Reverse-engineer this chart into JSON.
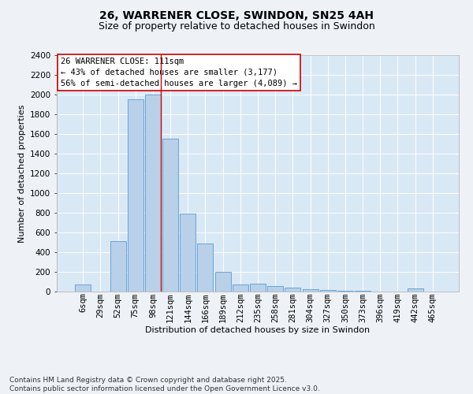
{
  "title": "26, WARRENER CLOSE, SWINDON, SN25 4AH",
  "subtitle": "Size of property relative to detached houses in Swindon",
  "xlabel": "Distribution of detached houses by size in Swindon",
  "ylabel": "Number of detached properties",
  "footer": "Contains HM Land Registry data © Crown copyright and database right 2025.\nContains public sector information licensed under the Open Government Licence v3.0.",
  "categories": [
    "6sqm",
    "29sqm",
    "52sqm",
    "75sqm",
    "98sqm",
    "121sqm",
    "144sqm",
    "166sqm",
    "189sqm",
    "212sqm",
    "235sqm",
    "258sqm",
    "281sqm",
    "304sqm",
    "327sqm",
    "350sqm",
    "373sqm",
    "396sqm",
    "419sqm",
    "442sqm",
    "465sqm"
  ],
  "values": [
    75,
    0,
    510,
    1950,
    2000,
    1550,
    790,
    490,
    200,
    70,
    80,
    55,
    40,
    25,
    15,
    10,
    5,
    0,
    0,
    30,
    0
  ],
  "bar_color": "#b8d0e8",
  "bar_edge_color": "#5b9bd5",
  "background_color": "#d9e8f5",
  "grid_color": "#ffffff",
  "fig_background": "#eef2f7",
  "annotation_text": "26 WARRENER CLOSE: 111sqm\n← 43% of detached houses are smaller (3,177)\n56% of semi-detached houses are larger (4,089) →",
  "annotation_box_color": "#ffffff",
  "annotation_box_edge": "#cc0000",
  "vline_color": "#cc0000",
  "vline_index": 4,
  "ylim": [
    0,
    2400
  ],
  "yticks": [
    0,
    200,
    400,
    600,
    800,
    1000,
    1200,
    1400,
    1600,
    1800,
    2000,
    2200,
    2400
  ],
  "title_fontsize": 10,
  "subtitle_fontsize": 9,
  "xlabel_fontsize": 8,
  "ylabel_fontsize": 8,
  "tick_fontsize": 7.5,
  "annotation_fontsize": 7.5,
  "footer_fontsize": 6.5
}
